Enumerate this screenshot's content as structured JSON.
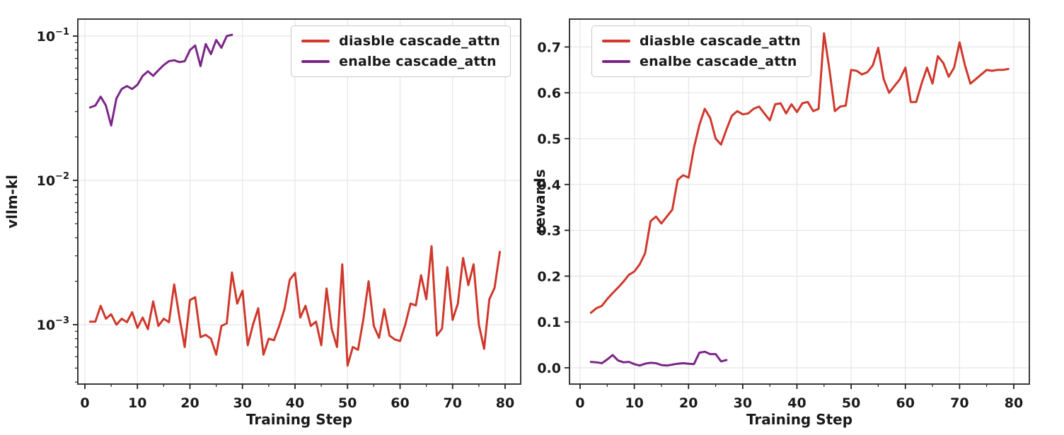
{
  "figure": {
    "background": "#ffffff"
  },
  "colors": {
    "disable": "#d0382c",
    "enable": "#7b2687",
    "grid": "#e5e5e5",
    "spine": "#3a3a3a",
    "tick": "#222222",
    "text": "#1a1a1a",
    "legend_border": "#c9c9c9"
  },
  "legend": {
    "entries": [
      {
        "label": "diasble cascade_attn",
        "color_key": "disable"
      },
      {
        "label": "enalbe cascade_attn",
        "color_key": "enable"
      }
    ]
  },
  "chart_data": [
    {
      "id": "vllm_kl",
      "type": "line",
      "title": "",
      "xlabel": "Training Step",
      "ylabel": "vllm-kl",
      "yscale": "log",
      "xlim": [
        -1.4,
        83
      ],
      "ylim": [
        0.00039,
        0.131
      ],
      "xticks": [
        0,
        10,
        20,
        30,
        40,
        50,
        60,
        70,
        80
      ],
      "yticks": [
        0.1,
        0.01,
        0.001
      ],
      "grid": true,
      "legend_position": "upper-right",
      "series": [
        {
          "name": "diasble cascade_attn",
          "color_key": "disable",
          "x": [
            1,
            2,
            3,
            4,
            5,
            6,
            7,
            8,
            9,
            10,
            11,
            12,
            13,
            14,
            15,
            16,
            17,
            18,
            19,
            20,
            21,
            22,
            23,
            24,
            25,
            26,
            27,
            28,
            29,
            30,
            31,
            32,
            33,
            34,
            35,
            36,
            37,
            38,
            39,
            40,
            41,
            42,
            43,
            44,
            45,
            46,
            47,
            48,
            49,
            50,
            51,
            52,
            53,
            54,
            55,
            56,
            57,
            58,
            59,
            60,
            61,
            62,
            63,
            64,
            65,
            66,
            67,
            68,
            69,
            70,
            71,
            72,
            73,
            74,
            75,
            76,
            77,
            78,
            79
          ],
          "y": [
            0.00105,
            0.00105,
            0.00135,
            0.0011,
            0.00118,
            0.001,
            0.0011,
            0.00104,
            0.00122,
            0.00095,
            0.00112,
            0.00093,
            0.00145,
            0.00098,
            0.0011,
            0.00104,
            0.0019,
            0.00112,
            0.0007,
            0.00148,
            0.00155,
            0.00082,
            0.00085,
            0.0008,
            0.00062,
            0.00098,
            0.00102,
            0.0023,
            0.0014,
            0.00172,
            0.00072,
            0.001,
            0.0013,
            0.00062,
            0.0008,
            0.00078,
            0.00098,
            0.00128,
            0.00205,
            0.00228,
            0.00112,
            0.00135,
            0.00098,
            0.00105,
            0.00072,
            0.00178,
            0.00093,
            0.0007,
            0.00262,
            0.00052,
            0.0007,
            0.00067,
            0.00108,
            0.002,
            0.00098,
            0.00081,
            0.00128,
            0.00084,
            0.00079,
            0.00077,
            0.001,
            0.0014,
            0.00136,
            0.0022,
            0.0015,
            0.0035,
            0.00084,
            0.00094,
            0.0025,
            0.00108,
            0.0014,
            0.0029,
            0.00188,
            0.00262,
            0.001,
            0.00068,
            0.0015,
            0.0018,
            0.0032
          ]
        },
        {
          "name": "enalbe cascade_attn",
          "color_key": "enable",
          "x": [
            1,
            2,
            3,
            4,
            5,
            6,
            7,
            8,
            9,
            10,
            11,
            12,
            13,
            14,
            15,
            16,
            17,
            18,
            19,
            20,
            21,
            22,
            23,
            24,
            25,
            26,
            27,
            28
          ],
          "y": [
            0.032,
            0.033,
            0.038,
            0.033,
            0.024,
            0.037,
            0.043,
            0.045,
            0.043,
            0.046,
            0.053,
            0.057,
            0.053,
            0.058,
            0.063,
            0.067,
            0.068,
            0.066,
            0.067,
            0.08,
            0.086,
            0.062,
            0.088,
            0.075,
            0.094,
            0.083,
            0.1,
            0.102
          ]
        }
      ]
    },
    {
      "id": "rewards",
      "type": "line",
      "title": "",
      "xlabel": "Training Step",
      "ylabel": "rewards",
      "yscale": "linear",
      "xlim": [
        -2,
        83
      ],
      "ylim": [
        -0.036,
        0.761
      ],
      "xticks": [
        0,
        10,
        20,
        30,
        40,
        50,
        60,
        70,
        80
      ],
      "yticks": [
        0.0,
        0.1,
        0.2,
        0.3,
        0.4,
        0.5,
        0.6,
        0.7
      ],
      "grid": true,
      "legend_position": "upper-left",
      "series": [
        {
          "name": "diasble cascade_attn",
          "color_key": "disable",
          "x": [
            2,
            3,
            4,
            5,
            6,
            7,
            8,
            9,
            10,
            11,
            12,
            13,
            14,
            15,
            16,
            17,
            18,
            19,
            20,
            21,
            22,
            23,
            24,
            25,
            26,
            27,
            28,
            29,
            30,
            31,
            32,
            33,
            34,
            35,
            36,
            37,
            38,
            39,
            40,
            41,
            42,
            43,
            44,
            45,
            46,
            47,
            48,
            49,
            50,
            51,
            52,
            53,
            54,
            55,
            56,
            57,
            58,
            59,
            60,
            61,
            62,
            63,
            64,
            65,
            66,
            67,
            68,
            69,
            70,
            71,
            72,
            73,
            74,
            75,
            76,
            77,
            78,
            79
          ],
          "y": [
            0.12,
            0.13,
            0.135,
            0.15,
            0.163,
            0.175,
            0.188,
            0.203,
            0.21,
            0.226,
            0.25,
            0.32,
            0.33,
            0.315,
            0.33,
            0.345,
            0.41,
            0.42,
            0.415,
            0.48,
            0.53,
            0.565,
            0.545,
            0.5,
            0.487,
            0.52,
            0.55,
            0.56,
            0.553,
            0.555,
            0.565,
            0.57,
            0.555,
            0.54,
            0.575,
            0.577,
            0.555,
            0.575,
            0.558,
            0.577,
            0.58,
            0.56,
            0.565,
            0.73,
            0.65,
            0.56,
            0.57,
            0.572,
            0.65,
            0.648,
            0.64,
            0.645,
            0.66,
            0.698,
            0.63,
            0.6,
            0.615,
            0.63,
            0.655,
            0.58,
            0.58,
            0.62,
            0.655,
            0.62,
            0.68,
            0.665,
            0.635,
            0.655,
            0.71,
            0.66,
            0.62,
            0.63,
            0.64,
            0.65,
            0.648,
            0.65,
            0.65,
            0.652
          ]
        },
        {
          "name": "enalbe cascade_attn",
          "color_key": "enable",
          "x": [
            2,
            3,
            4,
            5,
            6,
            7,
            8,
            9,
            10,
            11,
            12,
            13,
            14,
            15,
            16,
            17,
            18,
            19,
            20,
            21,
            22,
            23,
            24,
            25,
            26,
            27
          ],
          "y": [
            0.013,
            0.012,
            0.01,
            0.018,
            0.028,
            0.016,
            0.012,
            0.013,
            0.008,
            0.005,
            0.009,
            0.011,
            0.01,
            0.006,
            0.005,
            0.007,
            0.009,
            0.01,
            0.009,
            0.008,
            0.033,
            0.035,
            0.03,
            0.03,
            0.014,
            0.017
          ]
        }
      ]
    }
  ]
}
